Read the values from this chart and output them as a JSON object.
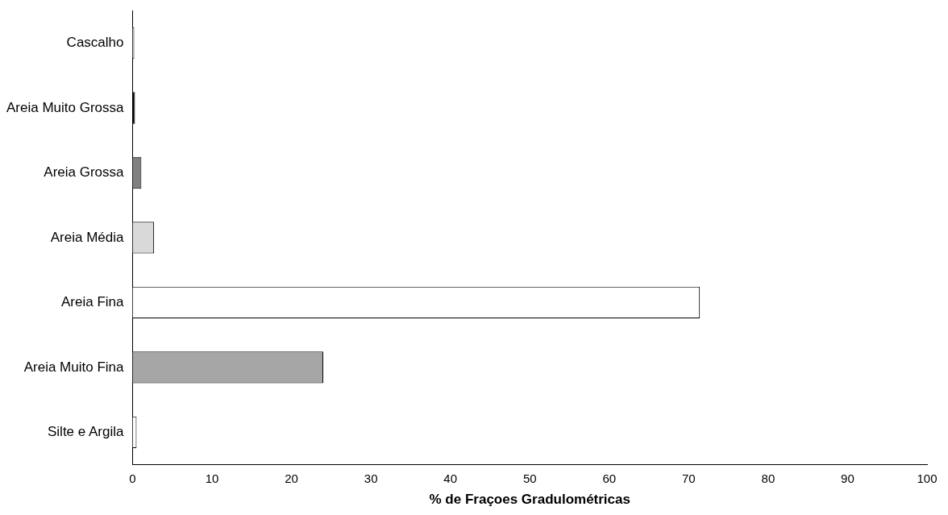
{
  "chart_data": {
    "type": "bar",
    "orientation": "horizontal",
    "xlabel": "% de Fraçoes Gradulométricas",
    "categories": [
      "Cascalho",
      "Areia Muito Grossa",
      "Areia Grossa",
      "Areia Média",
      "Areia Fina",
      "Areia Muito Fina",
      "Silte e Argila"
    ],
    "values": [
      0.2,
      0.3,
      1.1,
      2.7,
      71.4,
      24.0,
      0.5
    ],
    "colors": [
      "#ffffff",
      "#000000",
      "#808080",
      "#d9d9d9",
      "#ffffff",
      "#a6a6a6",
      "#ffffff"
    ],
    "xlim": [
      0,
      100
    ],
    "xticks": [
      0,
      10,
      20,
      30,
      40,
      50,
      60,
      70,
      80,
      90,
      100
    ],
    "grid": false,
    "legend": false
  }
}
